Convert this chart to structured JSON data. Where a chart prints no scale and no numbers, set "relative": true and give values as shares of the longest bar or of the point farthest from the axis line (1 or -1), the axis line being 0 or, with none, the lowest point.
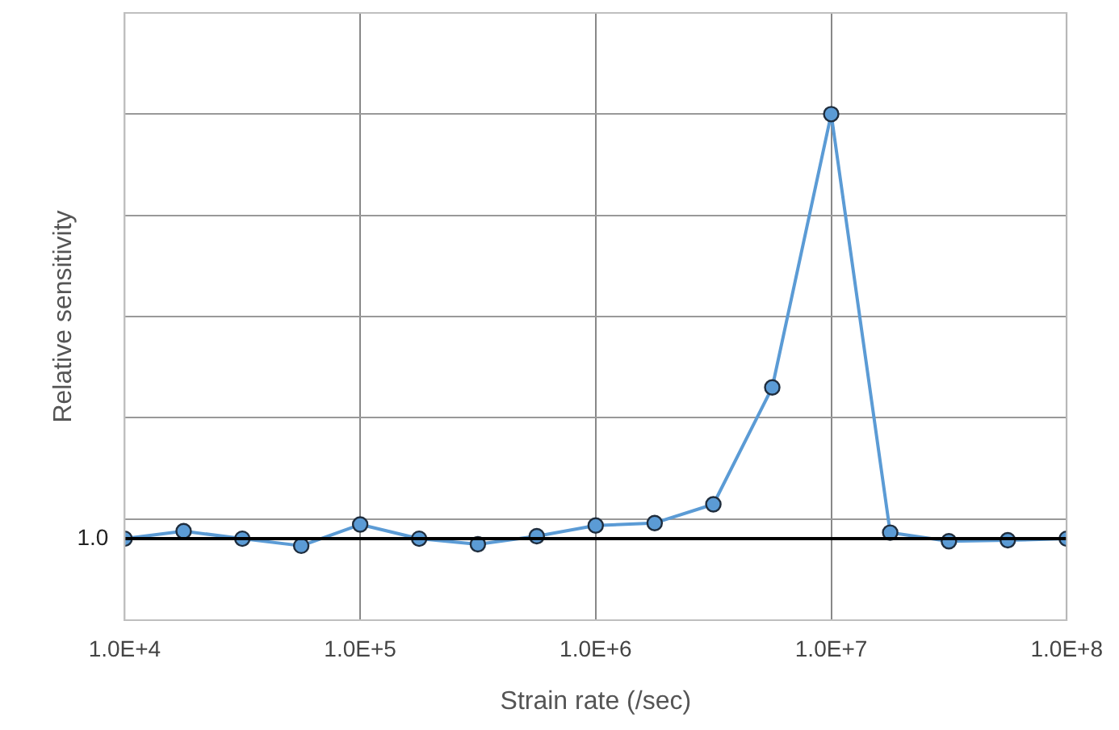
{
  "chart_data": {
    "type": "line",
    "xlabel": "Strain rate (/sec)",
    "ylabel": "Relative sensitivity",
    "relative": true,
    "x": [
      10000,
      17800,
      31600,
      56200,
      100000,
      178000,
      316000,
      562000,
      1000000,
      1780000,
      3160000,
      5620000,
      10000000,
      17800000,
      31600000,
      56200000,
      100000000
    ],
    "series": [
      {
        "color": "#5b9bd5",
        "values": [
          0.161,
          0.176,
          0.161,
          0.147,
          0.189,
          0.161,
          0.15,
          0.166,
          0.187,
          0.192,
          0.229,
          0.46,
          1,
          0.173,
          0.156,
          0.158,
          0.161
        ]
      }
    ],
    "log": "x",
    "xlim": [
      10000,
      100000000
    ],
    "xticks": [
      {
        "value": 10000,
        "label": "1.0E+4"
      },
      {
        "value": 100000,
        "label": "1.0E+5"
      },
      {
        "value": 1000000,
        "label": "1.0E+6"
      },
      {
        "value": 10000000,
        "label": "1.0E+7"
      },
      {
        "value": 100000000,
        "label": "1.0E+8"
      }
    ],
    "ref_lines": [
      {
        "axis": "y",
        "value": 0.161,
        "color": "#000000"
      }
    ],
    "annotations": [
      "1.0"
    ],
    "grid": true,
    "legend": false,
    "marker": "circle",
    "line_style": "solid"
  }
}
